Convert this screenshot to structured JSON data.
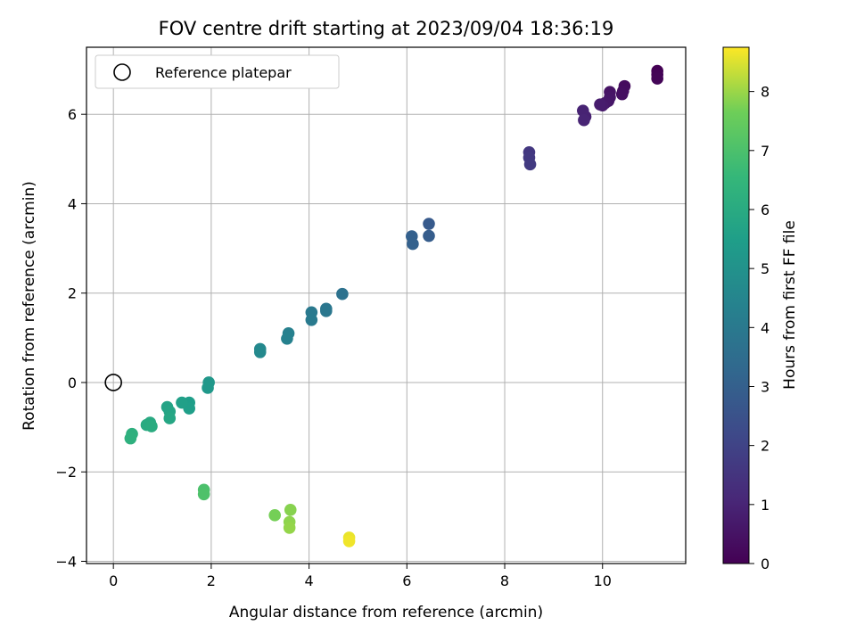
{
  "chart_data": {
    "type": "scatter",
    "title": "FOV centre drift starting at 2023/09/04 18:36:19",
    "xlabel": "Angular distance from reference (arcmin)",
    "ylabel": "Rotation from reference (arcmin)",
    "xlim": [
      -0.55,
      11.7
    ],
    "ylim": [
      -4.05,
      7.5
    ],
    "xticks": [
      0,
      2,
      4,
      6,
      8,
      10
    ],
    "yticks": [
      -4,
      -2,
      0,
      2,
      4,
      6
    ],
    "xtick_labels": [
      "0",
      "2",
      "4",
      "6",
      "8",
      "10"
    ],
    "ytick_labels": [
      "−4",
      "−2",
      "0",
      "2",
      "4",
      "6"
    ],
    "grid": true,
    "legend": {
      "placement": "top-left",
      "label": "Reference platepar"
    },
    "reference_point": {
      "x": 0,
      "y": 0
    },
    "colorbar": {
      "label": "Hours from first FF file",
      "range": [
        0,
        8.75
      ],
      "ticks": [
        0,
        1,
        2,
        3,
        4,
        5,
        6,
        7,
        8
      ],
      "tick_labels": [
        "0",
        "1",
        "2",
        "3",
        "4",
        "5",
        "6",
        "7",
        "8"
      ],
      "colormap": "viridis"
    },
    "points": [
      {
        "x": 11.12,
        "y": 6.97,
        "c": 0.0
      },
      {
        "x": 11.12,
        "y": 6.89,
        "c": 0.05
      },
      {
        "x": 11.12,
        "y": 6.8,
        "c": 0.1
      },
      {
        "x": 10.45,
        "y": 6.63,
        "c": 0.3
      },
      {
        "x": 10.42,
        "y": 6.52,
        "c": 0.35
      },
      {
        "x": 10.4,
        "y": 6.45,
        "c": 0.4
      },
      {
        "x": 10.15,
        "y": 6.5,
        "c": 0.5
      },
      {
        "x": 10.15,
        "y": 6.38,
        "c": 0.55
      },
      {
        "x": 10.12,
        "y": 6.3,
        "c": 0.6
      },
      {
        "x": 10.05,
        "y": 6.25,
        "c": 0.65
      },
      {
        "x": 10.0,
        "y": 6.2,
        "c": 0.7
      },
      {
        "x": 9.95,
        "y": 6.22,
        "c": 0.75
      },
      {
        "x": 9.65,
        "y": 5.95,
        "c": 0.9
      },
      {
        "x": 9.6,
        "y": 6.08,
        "c": 0.95
      },
      {
        "x": 9.62,
        "y": 5.87,
        "c": 1.0
      },
      {
        "x": 8.5,
        "y": 5.15,
        "c": 1.6
      },
      {
        "x": 8.5,
        "y": 5.03,
        "c": 1.65
      },
      {
        "x": 8.52,
        "y": 4.88,
        "c": 1.7
      },
      {
        "x": 6.45,
        "y": 3.55,
        "c": 2.8
      },
      {
        "x": 6.45,
        "y": 3.28,
        "c": 2.9
      },
      {
        "x": 6.1,
        "y": 3.27,
        "c": 3.0
      },
      {
        "x": 6.12,
        "y": 3.1,
        "c": 3.05
      },
      {
        "x": 4.68,
        "y": 1.98,
        "c": 3.7
      },
      {
        "x": 4.35,
        "y": 1.65,
        "c": 3.85
      },
      {
        "x": 4.35,
        "y": 1.6,
        "c": 3.9
      },
      {
        "x": 4.05,
        "y": 1.57,
        "c": 4.0
      },
      {
        "x": 4.05,
        "y": 1.4,
        "c": 4.05
      },
      {
        "x": 3.58,
        "y": 1.1,
        "c": 4.3
      },
      {
        "x": 3.55,
        "y": 0.98,
        "c": 4.35
      },
      {
        "x": 3.0,
        "y": 0.75,
        "c": 4.6
      },
      {
        "x": 3.0,
        "y": 0.68,
        "c": 4.65
      },
      {
        "x": 1.95,
        "y": 0.0,
        "c": 5.2
      },
      {
        "x": 1.93,
        "y": -0.12,
        "c": 5.25
      },
      {
        "x": 1.55,
        "y": -0.45,
        "c": 5.45
      },
      {
        "x": 1.55,
        "y": -0.58,
        "c": 5.5
      },
      {
        "x": 1.4,
        "y": -0.45,
        "c": 5.55
      },
      {
        "x": 1.1,
        "y": -0.55,
        "c": 5.7
      },
      {
        "x": 1.15,
        "y": -0.65,
        "c": 5.75
      },
      {
        "x": 1.15,
        "y": -0.8,
        "c": 5.8
      },
      {
        "x": 0.75,
        "y": -0.9,
        "c": 5.95
      },
      {
        "x": 0.68,
        "y": -0.95,
        "c": 6.0
      },
      {
        "x": 0.78,
        "y": -0.98,
        "c": 6.05
      },
      {
        "x": 0.38,
        "y": -1.15,
        "c": 6.2
      },
      {
        "x": 0.35,
        "y": -1.25,
        "c": 6.25
      },
      {
        "x": 1.85,
        "y": -2.4,
        "c": 7.0
      },
      {
        "x": 1.85,
        "y": -2.5,
        "c": 7.05
      },
      {
        "x": 3.3,
        "y": -2.97,
        "c": 7.7
      },
      {
        "x": 3.62,
        "y": -2.85,
        "c": 7.85
      },
      {
        "x": 3.6,
        "y": -3.12,
        "c": 7.9
      },
      {
        "x": 3.6,
        "y": -3.25,
        "c": 7.95
      },
      {
        "x": 4.82,
        "y": -3.47,
        "c": 8.6
      },
      {
        "x": 4.82,
        "y": -3.55,
        "c": 8.65
      }
    ]
  }
}
